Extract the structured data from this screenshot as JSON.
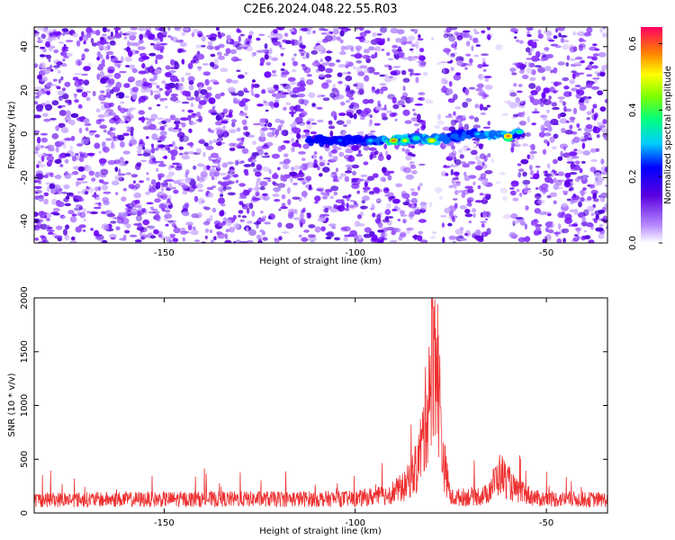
{
  "title": "C2E6.2024.048.22.55.R03",
  "chart_data": [
    {
      "type": "heatmap",
      "xlabel": "Height of straight line (km)",
      "ylabel": "Frequency (Hz)",
      "xlim": [
        -184,
        -34
      ],
      "ylim": [
        -50,
        49
      ],
      "xticks": [
        -150,
        -100,
        -50
      ],
      "yticks": [
        -40,
        -20,
        0,
        20,
        40
      ],
      "gaps": [
        [
          -82,
          -77
        ],
        [
          -65,
          -59
        ]
      ],
      "ridge": [
        {
          "x": -112,
          "y": -3,
          "value": 0.1
        },
        {
          "x": -104,
          "y": -3,
          "value": 0.15
        },
        {
          "x": -96,
          "y": -3,
          "value": 0.22
        },
        {
          "x": -90,
          "y": -3,
          "value": 0.55
        },
        {
          "x": -87,
          "y": -3,
          "value": 0.45
        },
        {
          "x": -84,
          "y": -2,
          "value": 0.3
        },
        {
          "x": -80,
          "y": -3,
          "value": 0.5
        },
        {
          "x": -74,
          "y": -1,
          "value": 0.2
        },
        {
          "x": -68,
          "y": 0,
          "value": 0.25
        },
        {
          "x": -60,
          "y": -1,
          "value": 0.6
        },
        {
          "x": -57,
          "y": 1,
          "value": 0.3
        }
      ],
      "colorbar": {
        "label": "Normalized spectral amplitude",
        "range": [
          0.0,
          0.65
        ],
        "ticks": [
          "0.0",
          "0.2",
          "0.4",
          "0.6"
        ]
      }
    },
    {
      "type": "line",
      "xlabel": "Height of straight line (km)",
      "ylabel": "SNR (10 * v/v)",
      "xlim": [
        -184,
        -34
      ],
      "ylim": [
        0,
        2000
      ],
      "xticks": [
        -150,
        -100,
        -50
      ],
      "yticks": [
        0,
        500,
        1000,
        1500,
        2000
      ],
      "color": "#ee3030",
      "envelope": [
        {
          "x": -184,
          "y": 150
        },
        {
          "x": -100,
          "y": 160
        },
        {
          "x": -92,
          "y": 200
        },
        {
          "x": -87,
          "y": 300
        },
        {
          "x": -84,
          "y": 500
        },
        {
          "x": -82,
          "y": 900
        },
        {
          "x": -80,
          "y": 1700
        },
        {
          "x": -79,
          "y": 2000
        },
        {
          "x": -77,
          "y": 600
        },
        {
          "x": -75,
          "y": 170
        },
        {
          "x": -66,
          "y": 200
        },
        {
          "x": -62,
          "y": 450
        },
        {
          "x": -58,
          "y": 250
        },
        {
          "x": -52,
          "y": 160
        },
        {
          "x": -34,
          "y": 150
        }
      ]
    }
  ]
}
